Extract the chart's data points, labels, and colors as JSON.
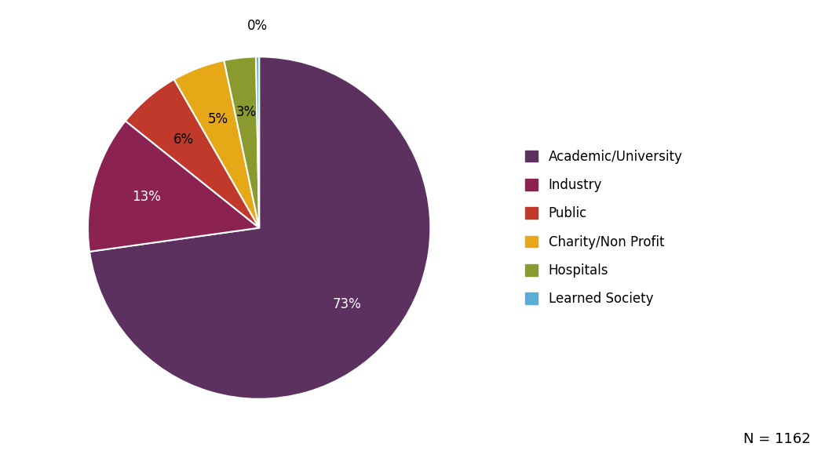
{
  "categories": [
    "Academic/University",
    "Industry",
    "Public",
    "Charity/Non Profit",
    "Hospitals",
    "Learned Society"
  ],
  "values": [
    73,
    13,
    6,
    5,
    3,
    0
  ],
  "colors": [
    "#5c3160",
    "#8b2252",
    "#c0392b",
    "#e6a817",
    "#8a9a2e",
    "#5bacd6"
  ],
  "pct_labels": [
    "73%",
    "13%",
    "6%",
    "5%",
    "3%",
    "0%"
  ],
  "startangle": 90,
  "n_label": "N = 1162",
  "background_color": "#ffffff",
  "wedge_edge_color": "white",
  "wedge_linewidth": 1.5,
  "label_fontsize": 12,
  "legend_fontsize": 12,
  "n_fontsize": 13
}
